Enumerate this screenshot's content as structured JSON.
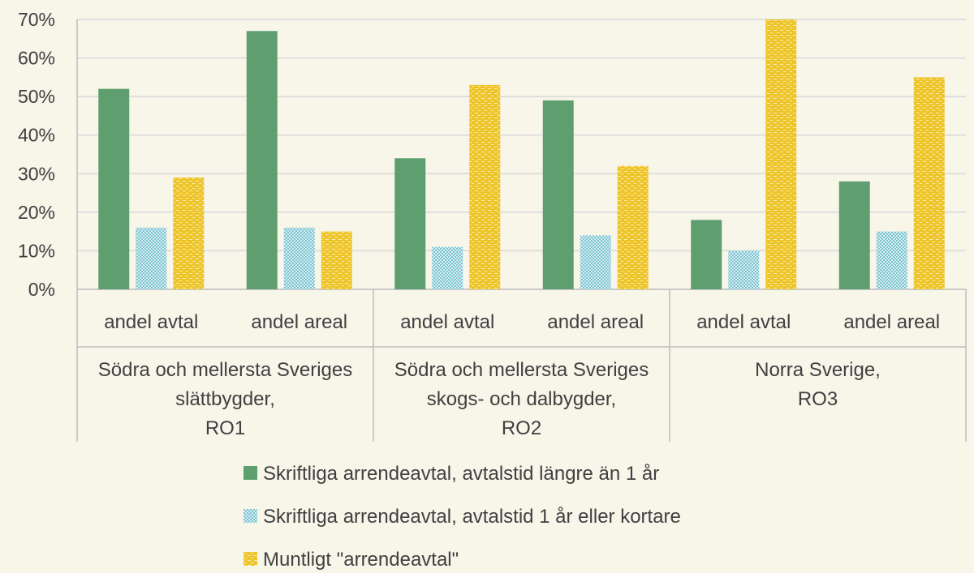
{
  "chart_data": {
    "type": "bar",
    "title": "",
    "xlabel": "",
    "ylabel": "",
    "ylim": [
      0,
      70
    ],
    "y_ticks": [
      "0%",
      "10%",
      "20%",
      "30%",
      "40%",
      "50%",
      "60%",
      "70%"
    ],
    "grid": true,
    "legend_position": "bottom",
    "groups": [
      {
        "label_lines": [
          "Södra och mellersta Sveriges",
          "slättbygder,",
          "RO1"
        ],
        "categories": [
          "andel avtal",
          "andel areal"
        ]
      },
      {
        "label_lines": [
          "Södra och mellersta Sveriges",
          "skogs- och dalbygder,",
          "RO2"
        ],
        "categories": [
          "andel avtal",
          "andel areal"
        ]
      },
      {
        "label_lines": [
          "Norra Sverige,",
          "RO3"
        ],
        "categories": [
          "andel avtal",
          "andel areal"
        ]
      }
    ],
    "categories": [
      "andel avtal",
      "andel areal",
      "andel avtal",
      "andel areal",
      "andel avtal",
      "andel areal"
    ],
    "series": [
      {
        "name": "Skriftliga arrendeavtal, avtalstid längre än 1 år",
        "color": "#5f9e6e",
        "pattern": "solid",
        "values": [
          52,
          67,
          34,
          49,
          18,
          28
        ]
      },
      {
        "name": "Skriftliga arrendeavtal, avtalstid 1 år eller kortare",
        "color": "#8fcfdc",
        "pattern": "dots",
        "values": [
          16,
          16,
          11,
          14,
          10,
          15
        ]
      },
      {
        "name": "Muntligt \"arrendeavtal\"",
        "color": "#e9c21b",
        "pattern": "dashes",
        "values": [
          29,
          15,
          53,
          32,
          70,
          55
        ]
      }
    ]
  }
}
